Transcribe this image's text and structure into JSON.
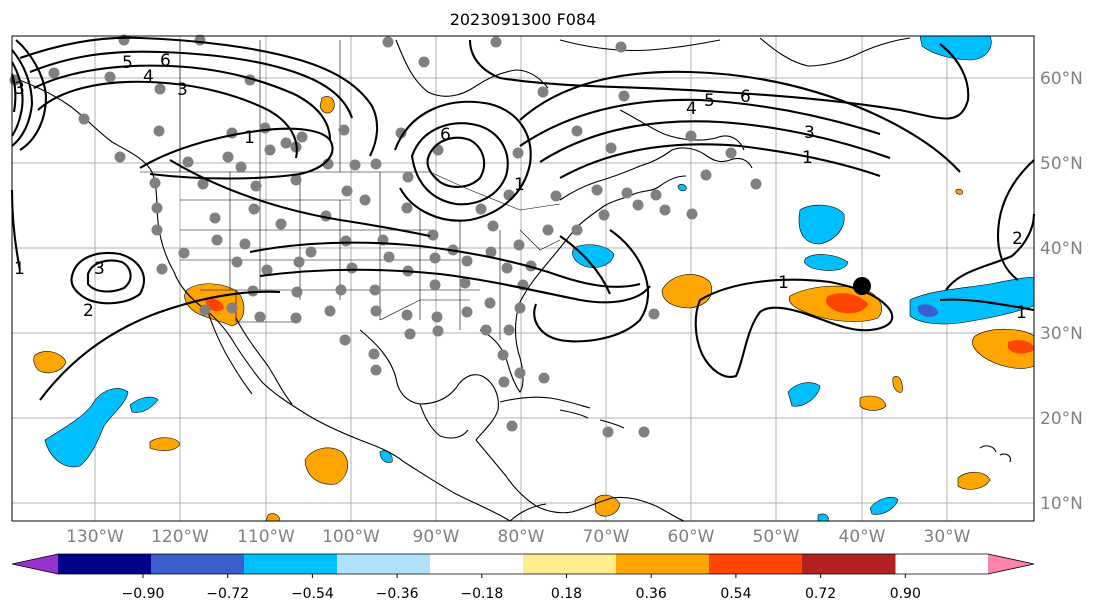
{
  "title": "2023091300 F084",
  "lat_labels": [
    "60°N",
    "50°N",
    "40°N",
    "30°N",
    "20°N",
    "10°N"
  ],
  "lon_labels": [
    "130°W",
    "120°W",
    "110°W",
    "100°W",
    "90°W",
    "80°W",
    "70°W",
    "60°W",
    "50°W",
    "40°W",
    "30°W"
  ],
  "colorbar": {
    "ticks": [
      "−0.90",
      "−0.72",
      "−0.54",
      "−0.36",
      "−0.18",
      "0.18",
      "0.36",
      "0.54",
      "0.72",
      "0.90"
    ],
    "colors": [
      "#9932cc",
      "#00008b",
      "#3a5fcd",
      "#00bfff",
      "#b0e2ff",
      "#ffffff",
      "#ffec8b",
      "#ffa500",
      "#ff4500",
      "#b22222",
      "#ff82ab"
    ]
  },
  "contour_labels": [
    "5",
    "6",
    "4",
    "3",
    "1",
    "3",
    "2",
    "1",
    "6",
    "1",
    "4",
    "5",
    "6",
    "3",
    "1",
    "1",
    "2",
    "1",
    "3"
  ]
}
